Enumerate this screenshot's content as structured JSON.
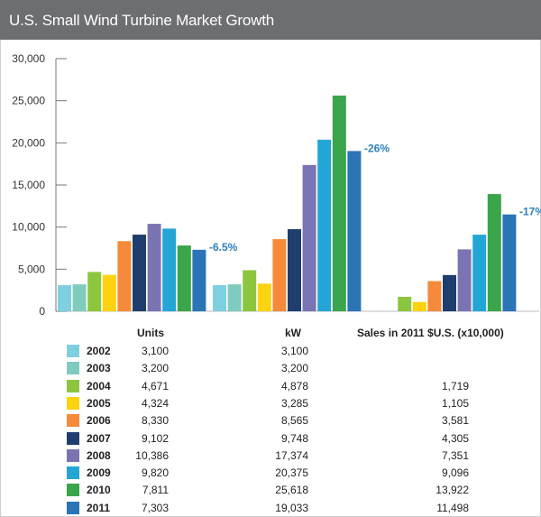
{
  "title": "U.S. Small Wind Turbine Market Growth",
  "chart_data": {
    "type": "bar",
    "title": "U.S. Small Wind Turbine Market Growth",
    "ylim": [
      0,
      30000
    ],
    "yticks": [
      "30,000",
      "25,000",
      "20,000",
      "15,000",
      "10,000",
      "5,000",
      "0"
    ],
    "ytick_values": [
      30000,
      25000,
      20000,
      15000,
      10000,
      5000,
      0
    ],
    "grid": false,
    "legend_position": "bottom-left",
    "groups": [
      "Units",
      "kW",
      "Sales in 2011 $U.S. (x10,000)"
    ],
    "series": [
      {
        "name": "2002",
        "color": "#7fcfe0",
        "values": [
          3100,
          3100,
          null
        ]
      },
      {
        "name": "2003",
        "color": "#7fcbbd",
        "values": [
          3200,
          3200,
          null
        ]
      },
      {
        "name": "2004",
        "color": "#8cc63f",
        "values": [
          4671,
          4878,
          1719
        ]
      },
      {
        "name": "2005",
        "color": "#fdd20e",
        "values": [
          4324,
          3285,
          1105
        ]
      },
      {
        "name": "2006",
        "color": "#f58a3a",
        "values": [
          8330,
          8565,
          3581
        ]
      },
      {
        "name": "2007",
        "color": "#1f3e6e",
        "values": [
          9102,
          9748,
          4305
        ]
      },
      {
        "name": "2008",
        "color": "#7b74b3",
        "values": [
          10386,
          17374,
          7351
        ]
      },
      {
        "name": "2009",
        "color": "#23a6d5",
        "values": [
          9820,
          20375,
          9096
        ]
      },
      {
        "name": "2010",
        "color": "#3aa54a",
        "values": [
          7811,
          25618,
          13922
        ]
      },
      {
        "name": "2011",
        "color": "#2b74b6",
        "values": [
          7303,
          19033,
          11498
        ]
      }
    ],
    "annotations": [
      "-6.5%",
      "-26%",
      "-17%"
    ],
    "annotation_color": "#2b7fbf"
  },
  "table": {
    "headers": [
      "Units",
      "kW",
      "Sales in 2011 $U.S. (x10,000)"
    ],
    "rows": [
      {
        "year": "2002",
        "units": "3,100",
        "kw": "3,100",
        "sales": ""
      },
      {
        "year": "2003",
        "units": "3,200",
        "kw": "3,200",
        "sales": ""
      },
      {
        "year": "2004",
        "units": "4,671",
        "kw": "4,878",
        "sales": "1,719"
      },
      {
        "year": "2005",
        "units": "4,324",
        "kw": "3,285",
        "sales": "1,105"
      },
      {
        "year": "2006",
        "units": "8,330",
        "kw": "8,565",
        "sales": "3,581"
      },
      {
        "year": "2007",
        "units": "9,102",
        "kw": "9,748",
        "sales": "4,305"
      },
      {
        "year": "2008",
        "units": "10,386",
        "kw": "17,374",
        "sales": "7,351"
      },
      {
        "year": "2009",
        "units": "9,820",
        "kw": "20,375",
        "sales": "9,096"
      },
      {
        "year": "2010",
        "units": "7,811",
        "kw": "25,618",
        "sales": "13,922"
      },
      {
        "year": "2011",
        "units": "7,303",
        "kw": "19,033",
        "sales": "11,498"
      }
    ]
  }
}
